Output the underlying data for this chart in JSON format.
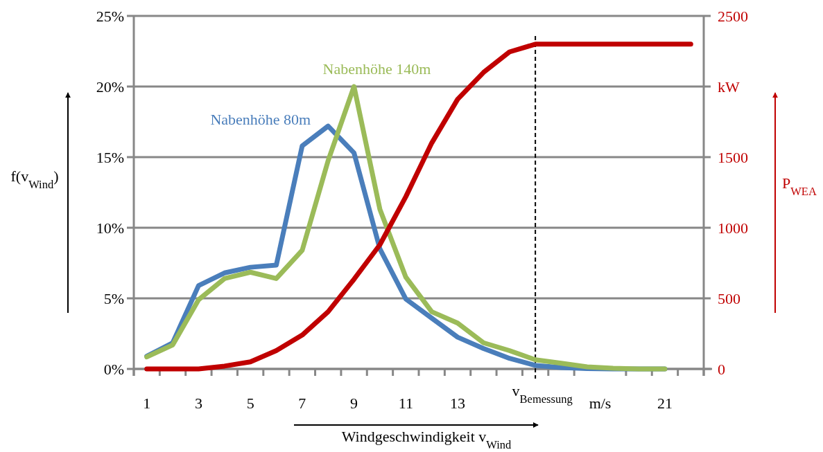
{
  "chart_data": {
    "type": "line",
    "xlabel": "Windgeschwindigkeit v$_{Wind}$",
    "ylabel": "f(v$_{Wind}$)",
    "y2label": "P$_{WEA}$",
    "x": [
      1,
      2,
      3,
      4,
      5,
      6,
      7,
      8,
      9,
      10,
      11,
      12,
      13,
      14,
      15,
      16,
      17,
      18,
      19,
      20,
      21,
      22
    ],
    "xlim": [
      0.5,
      22.5
    ],
    "xticks": [
      {
        "value": 0.5,
        "label": null
      },
      {
        "value": 1,
        "label": "1"
      },
      {
        "value": 1.5,
        "label": null
      },
      {
        "value": 2.5,
        "label": null
      },
      {
        "value": 3,
        "label": "3"
      },
      {
        "value": 3.5,
        "label": null
      },
      {
        "value": 4.5,
        "label": null
      },
      {
        "value": 5,
        "label": "5"
      },
      {
        "value": 5.5,
        "label": null
      },
      {
        "value": 6.5,
        "label": null
      },
      {
        "value": 7,
        "label": "7"
      },
      {
        "value": 7.5,
        "label": null
      },
      {
        "value": 8.5,
        "label": null
      },
      {
        "value": 9,
        "label": "9"
      },
      {
        "value": 9.5,
        "label": null
      },
      {
        "value": 10.5,
        "label": null
      },
      {
        "value": 11,
        "label": "11"
      },
      {
        "value": 11.5,
        "label": null
      },
      {
        "value": 12.5,
        "label": null
      },
      {
        "value": 13,
        "label": "13"
      },
      {
        "value": 13.5,
        "label": null
      },
      {
        "value": 14.5,
        "label": null
      },
      {
        "value": 15.5,
        "label": null
      },
      {
        "value": 16.5,
        "label": null
      },
      {
        "value": 17.5,
        "label": null
      },
      {
        "value": 18.5,
        "label": "m/s"
      },
      {
        "value": 19.5,
        "label": null
      },
      {
        "value": 20.5,
        "label": null
      },
      {
        "value": 21,
        "label": "21"
      },
      {
        "value": 21.5,
        "label": null
      },
      {
        "value": 22.5,
        "label": null
      }
    ],
    "ylim": [
      0,
      25
    ],
    "yticks": [
      {
        "value": 0,
        "label": "0%"
      },
      {
        "value": 5,
        "label": "5%"
      },
      {
        "value": 10,
        "label": "10%"
      },
      {
        "value": 15,
        "label": "15%"
      },
      {
        "value": 20,
        "label": "20%"
      },
      {
        "value": 25,
        "label": "25%"
      }
    ],
    "y2lim": [
      0,
      2500
    ],
    "y2ticks": [
      0,
      500,
      1000,
      1500,
      {
        "value": 2000,
        "label": "kW"
      },
      2500
    ],
    "grid": "y",
    "series": [
      {
        "name": "Nabenhöhe 80m",
        "color": "#4a7ebb",
        "values": [
          0.9,
          1.85,
          5.9,
          6.8,
          7.2,
          7.35,
          15.8,
          17.2,
          15.3,
          8.5,
          4.95,
          3.6,
          2.25,
          1.45,
          0.75,
          0.25,
          0.1,
          0.03,
          0,
          0,
          0,
          null
        ]
      },
      {
        "name": "Nabenhöhe 140m",
        "color": "#9bbb59",
        "values": [
          0.85,
          1.7,
          4.9,
          6.4,
          6.85,
          6.4,
          8.4,
          14.75,
          20,
          11.3,
          6.5,
          4.05,
          3.25,
          1.85,
          1.3,
          0.65,
          0.4,
          0.15,
          0.05,
          0,
          0,
          null
        ]
      },
      {
        "color": "#c00000",
        "axis": "y2",
        "values": [
          0,
          0,
          0,
          20,
          50,
          130,
          240,
          405,
          635,
          880,
          1220,
          1600,
          1910,
          2100,
          2245,
          2300,
          2300,
          2300,
          2300,
          2300,
          2300,
          2300
        ]
      }
    ],
    "ref_lines": [
      {
        "axis": "x",
        "value": 16,
        "label": "v$_{Bemessung}$",
        "color": "#000000",
        "line_style": "dashed"
      }
    ]
  }
}
